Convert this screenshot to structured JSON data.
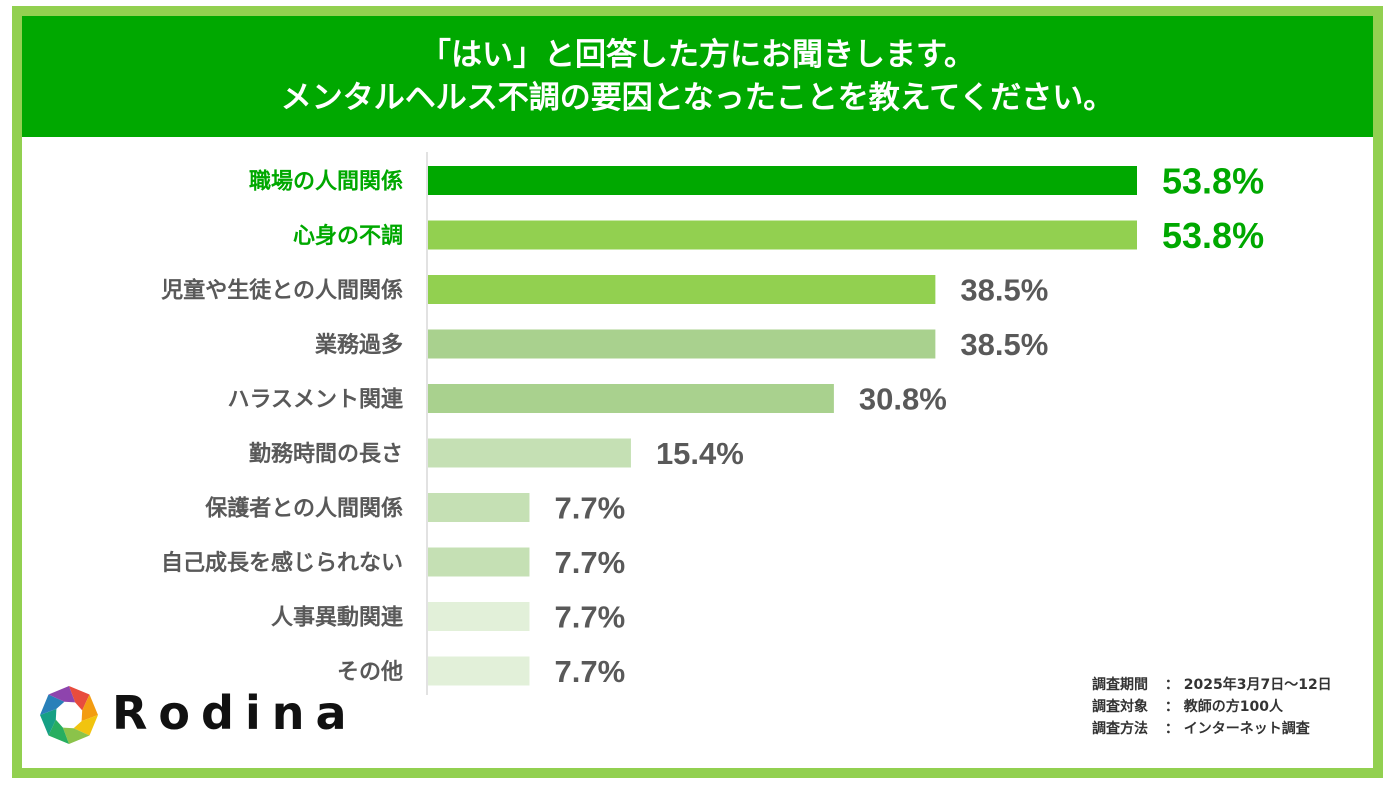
{
  "title": {
    "line1": "「はい」と回答した方にお聞きします。",
    "line2": "メンタルヘルス不調の要因となったことを教えてください。"
  },
  "colors": {
    "header_bg": "#00a800",
    "frame": "#92d050",
    "highlight_text": "#00a800",
    "normal_text": "#595959"
  },
  "chart_data": {
    "type": "bar",
    "orientation": "horizontal",
    "unit": "%",
    "xlim": [
      0,
      60
    ],
    "grid": false,
    "categories": [
      "職場の人間関係",
      "心身の不調",
      "児童や生徒との人間関係",
      "業務過多",
      "ハラスメント関連",
      "勤務時間の長さ",
      "保護者との人間関係",
      "自己成長を感じられない",
      "人事異動関連",
      "その他"
    ],
    "values": [
      53.8,
      53.8,
      38.5,
      38.5,
      30.8,
      15.4,
      7.7,
      7.7,
      7.7,
      7.7
    ],
    "value_labels": [
      "53.8%",
      "53.8%",
      "38.5%",
      "38.5%",
      "30.8%",
      "15.4%",
      "7.7%",
      "7.7%",
      "7.7%",
      "7.7%"
    ],
    "bar_colors": [
      "#00a800",
      "#92d050",
      "#92d050",
      "#a9d18e",
      "#a9d18e",
      "#c5e0b4",
      "#c5e0b4",
      "#c5e0b4",
      "#e2f0d9",
      "#e2f0d9"
    ],
    "highlighted": [
      true,
      true,
      false,
      false,
      false,
      false,
      false,
      false,
      false,
      false
    ]
  },
  "logo": {
    "text": "Rodina",
    "colors": [
      "#e84c3d",
      "#f39c12",
      "#f1c40f",
      "#8bc34a",
      "#27ae60",
      "#16a085",
      "#2980b9",
      "#8e44ad"
    ]
  },
  "survey_notes": [
    {
      "key": "調査期間",
      "value": "2025年3月7日〜12日"
    },
    {
      "key": "調査対象",
      "value": "教師の方100人"
    },
    {
      "key": "調査方法",
      "value": "インターネット調査"
    }
  ]
}
